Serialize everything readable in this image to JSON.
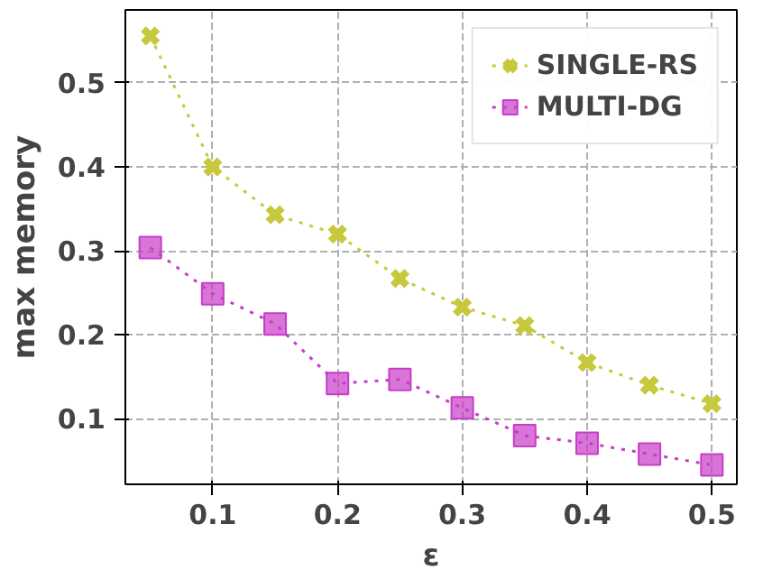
{
  "chart_data": {
    "type": "line",
    "xlabel": "ε",
    "ylabel": "max memory",
    "x": [
      0.05,
      0.1,
      0.15,
      0.2,
      0.25,
      0.3,
      0.35,
      0.4,
      0.45,
      0.5
    ],
    "series": [
      {
        "name": "SINGLE-RS",
        "color": "#c8c83c",
        "marker": "cross",
        "values": [
          0.556,
          0.4,
          0.343,
          0.32,
          0.267,
          0.233,
          0.211,
          0.167,
          0.14,
          0.118
        ]
      },
      {
        "name": "MULTI-DG",
        "color": "#c83cc8",
        "marker": "square",
        "values": [
          0.304,
          0.249,
          0.213,
          0.142,
          0.147,
          0.113,
          0.08,
          0.071,
          0.058,
          0.045
        ]
      }
    ],
    "xlim": [
      0.03,
      0.52
    ],
    "ylim": [
      0.022,
      0.587
    ],
    "xticks": [
      0.1,
      0.2,
      0.3,
      0.4,
      0.5
    ],
    "yticks": [
      0.1,
      0.2,
      0.3,
      0.4,
      0.5
    ],
    "grid": true,
    "legend": "top right",
    "line_style": "dotted"
  }
}
